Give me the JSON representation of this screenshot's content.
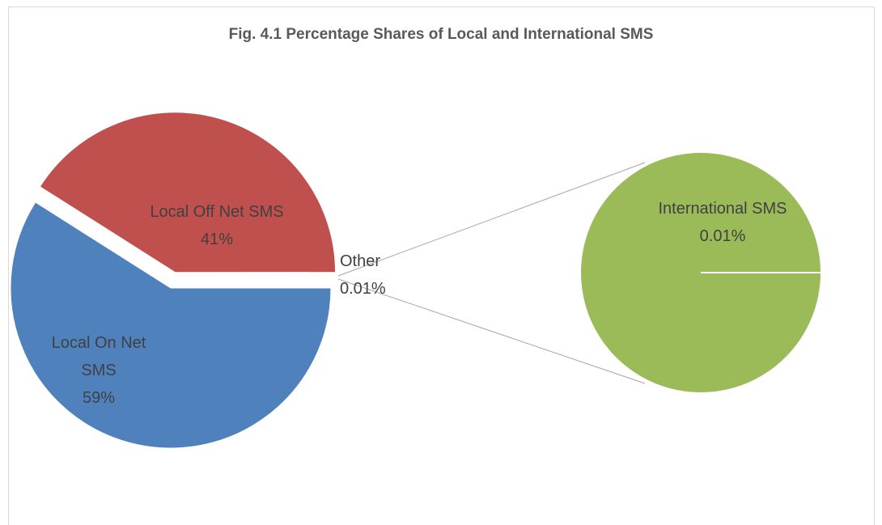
{
  "chart_data": {
    "type": "pie_of_pie",
    "title": "Fig. 4.1 Percentage Shares of Local and International SMS",
    "categories": [
      "Local On Net SMS",
      "Local Off Net SMS",
      "Other"
    ],
    "values": [
      59,
      41,
      0.01
    ],
    "value_labels": [
      "59%",
      "41%",
      "0.01%"
    ],
    "colors": [
      "#4f81bd",
      "#c0504d",
      "#9bbb59"
    ],
    "secondary": {
      "categories": [
        "International SMS"
      ],
      "values": [
        0.01
      ],
      "value_labels": [
        "0.01%"
      ],
      "colors": [
        "#9bbb59"
      ]
    }
  }
}
